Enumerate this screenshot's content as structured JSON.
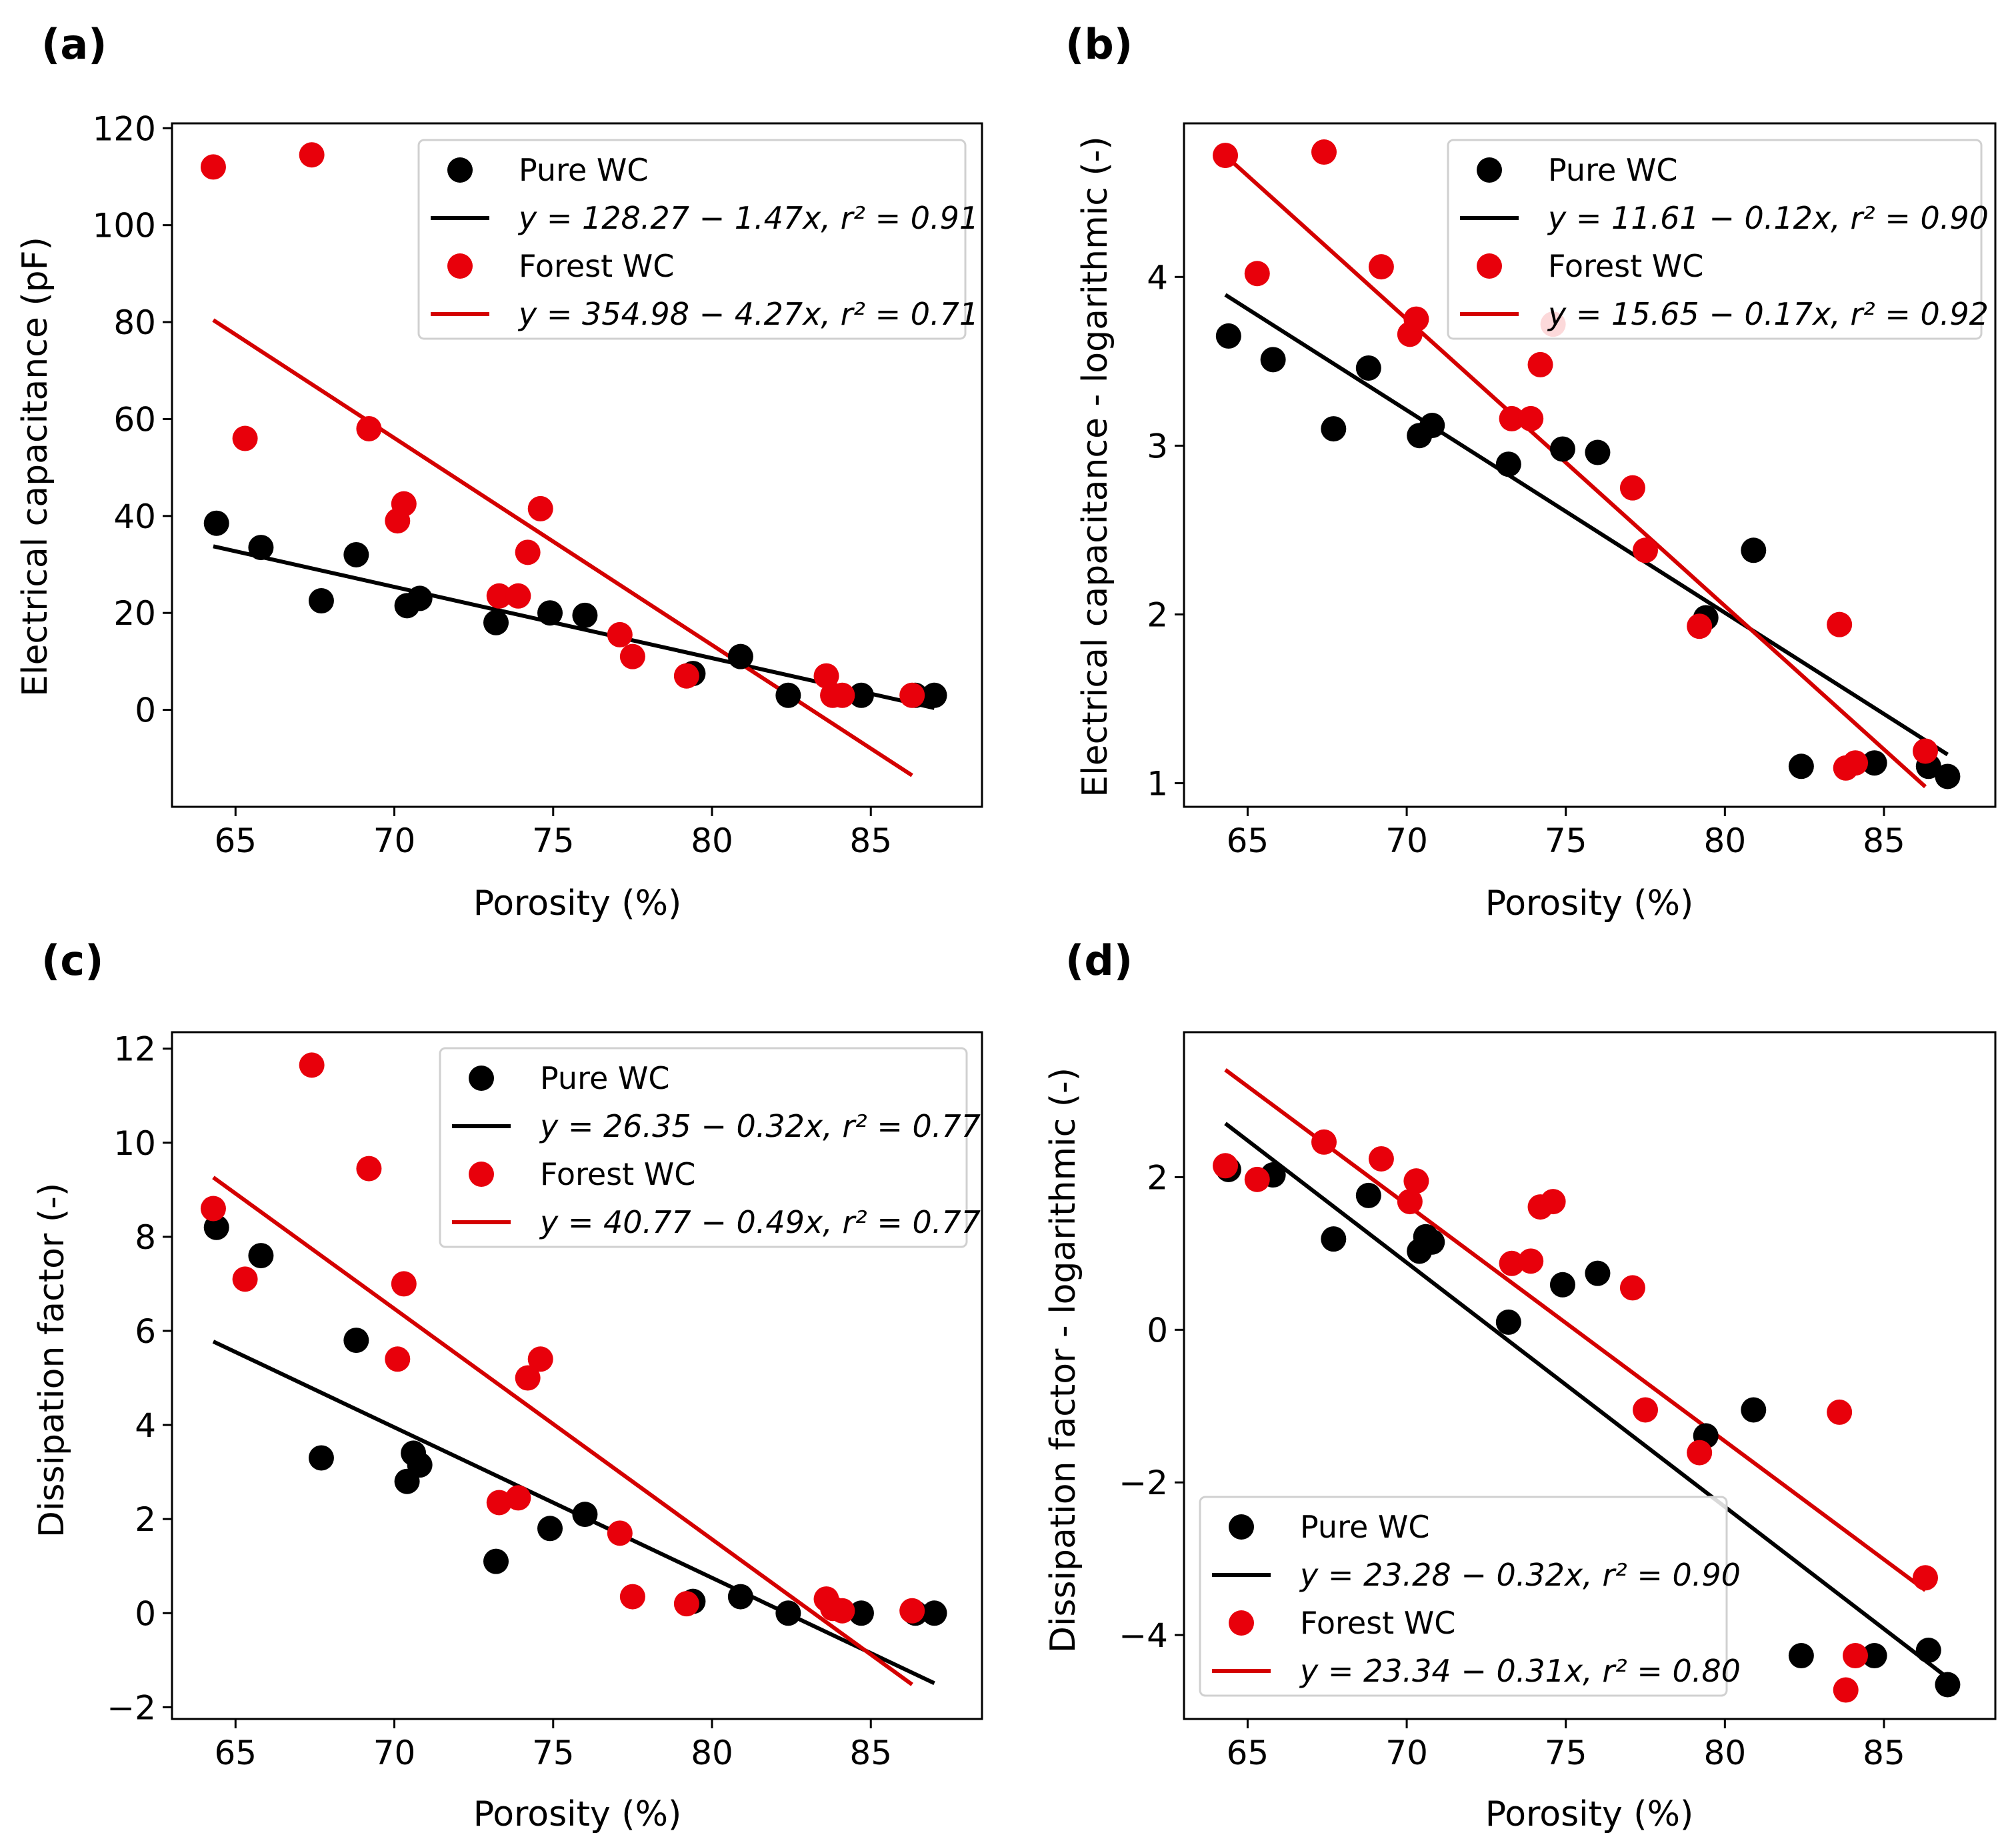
{
  "figure": {
    "x_label": "Porosity (%)",
    "colors": {
      "pure": "#000000",
      "forest": "#e8000b",
      "pure_line": "#000000",
      "forest_line": "#d40000"
    }
  },
  "chart_data": [
    {
      "type": "scatter",
      "panel": "(a)",
      "xlabel": "Porosity (%)",
      "ylabel": "Electrical capacitance (pF)",
      "xlim": [
        63.0,
        88.5
      ],
      "ylim": [
        -20,
        121
      ],
      "xticks": [
        65,
        70,
        75,
        80,
        85
      ],
      "yticks": [
        0,
        20,
        40,
        60,
        80,
        100,
        120
      ],
      "legend_position": "top-right",
      "series": [
        {
          "name": "Pure WC",
          "kind": "points",
          "color": "#000000",
          "x": [
            64.4,
            65.8,
            67.7,
            68.8,
            70.4,
            70.8,
            73.2,
            74.9,
            76.0,
            79.4,
            80.9,
            82.4,
            84.7,
            86.4,
            87.0
          ],
          "y": [
            38.5,
            33.5,
            22.5,
            32,
            21.5,
            23,
            18,
            20,
            19.5,
            7.5,
            11,
            3,
            3,
            3,
            3
          ]
        },
        {
          "name": "y = 128.27 − 1.47x, r² = 0.91",
          "kind": "line",
          "color": "#000000",
          "intercept": 128.27,
          "slope": -1.47,
          "x_range": [
            64.3,
            87.0
          ]
        },
        {
          "name": "Forest WC",
          "kind": "points",
          "color": "#e8000b",
          "x": [
            64.3,
            65.3,
            67.4,
            69.2,
            70.1,
            70.3,
            73.3,
            73.9,
            74.2,
            74.6,
            77.1,
            77.5,
            79.2,
            83.6,
            83.8,
            84.1,
            86.3
          ],
          "y": [
            112,
            56,
            114.5,
            58,
            39,
            42.5,
            23.5,
            23.5,
            32.5,
            41.5,
            15.5,
            11,
            7,
            7,
            3,
            3,
            3
          ]
        },
        {
          "name": "y = 354.98 − 4.27x, r² = 0.71",
          "kind": "line",
          "color": "#d40000",
          "intercept": 354.98,
          "slope": -4.27,
          "x_range": [
            64.3,
            86.3
          ]
        }
      ],
      "legend": [
        {
          "label": "Pure WC",
          "kind": "point",
          "color": "#000000"
        },
        {
          "label": "y = 128.27 − 1.47x, r² = 0.91",
          "kind": "line",
          "color": "#000000"
        },
        {
          "label": "Forest WC",
          "kind": "point",
          "color": "#e8000b"
        },
        {
          "label": "y = 354.98 − 4.27x, r² = 0.71",
          "kind": "line",
          "color": "#d40000"
        }
      ]
    },
    {
      "type": "scatter",
      "panel": "(b)",
      "xlabel": "Porosity (%)",
      "ylabel": "Electrical capacitance - logarithmic (-)",
      "xlim": [
        63.0,
        88.5
      ],
      "ylim": [
        0.86,
        4.91
      ],
      "xticks": [
        65,
        70,
        75,
        80,
        85
      ],
      "yticks": [
        1,
        2,
        3,
        4
      ],
      "legend_position": "top-right",
      "series": [
        {
          "name": "Pure WC",
          "kind": "points",
          "color": "#000000",
          "x": [
            64.4,
            65.8,
            67.7,
            68.8,
            70.4,
            70.8,
            73.2,
            74.9,
            76.0,
            79.4,
            80.9,
            82.4,
            84.7,
            86.4,
            87.0
          ],
          "y": [
            3.65,
            3.51,
            3.1,
            3.46,
            3.06,
            3.12,
            2.89,
            2.98,
            2.96,
            1.98,
            2.38,
            1.1,
            1.12,
            1.1,
            1.04
          ]
        },
        {
          "name": "y = 11.61 − 0.12x, r² = 0.90",
          "kind": "line",
          "color": "#000000",
          "intercept": 11.61,
          "slope": -0.12,
          "x_range": [
            64.3,
            87.0
          ]
        },
        {
          "name": "Forest WC",
          "kind": "points",
          "color": "#e8000b",
          "x": [
            64.3,
            65.3,
            67.4,
            69.2,
            70.1,
            70.3,
            73.3,
            73.9,
            74.2,
            74.6,
            77.1,
            77.5,
            79.2,
            83.6,
            83.8,
            84.1,
            86.3
          ],
          "y": [
            4.72,
            4.02,
            4.74,
            4.06,
            3.66,
            3.75,
            3.16,
            3.16,
            3.48,
            3.72,
            2.75,
            2.38,
            1.93,
            1.94,
            1.09,
            1.12,
            1.19
          ]
        },
        {
          "name": "y = 15.65 − 0.17x, r² = 0.92",
          "kind": "line",
          "color": "#d40000",
          "intercept": 15.65,
          "slope": -0.17,
          "x_range": [
            64.3,
            86.3
          ]
        }
      ],
      "legend": [
        {
          "label": "Pure WC",
          "kind": "point",
          "color": "#000000"
        },
        {
          "label": "y = 11.61 − 0.12x, r² = 0.90",
          "kind": "line",
          "color": "#000000"
        },
        {
          "label": "Forest WC",
          "kind": "point",
          "color": "#e8000b"
        },
        {
          "label": "y = 15.65 − 0.17x, r² = 0.92",
          "kind": "line",
          "color": "#d40000"
        }
      ]
    },
    {
      "type": "scatter",
      "panel": "(c)",
      "xlabel": "Porosity (%)",
      "ylabel": "Dissipation factor (-)",
      "xlim": [
        63.0,
        88.5
      ],
      "ylim": [
        -2.25,
        12.35
      ],
      "xticks": [
        65,
        70,
        75,
        80,
        85
      ],
      "yticks": [
        -2,
        0,
        2,
        4,
        6,
        8,
        10,
        12
      ],
      "legend_position": "top-right",
      "series": [
        {
          "name": "Pure WC",
          "kind": "points",
          "color": "#000000",
          "x": [
            64.4,
            65.8,
            67.7,
            68.8,
            70.4,
            70.6,
            70.8,
            73.2,
            74.9,
            76.0,
            79.4,
            80.9,
            82.4,
            84.7,
            86.4,
            87.0
          ],
          "y": [
            8.2,
            7.6,
            3.3,
            5.8,
            2.8,
            3.4,
            3.15,
            1.1,
            1.8,
            2.1,
            0.25,
            0.35,
            0,
            0,
            0,
            0
          ]
        },
        {
          "name": "y = 26.35 − 0.32x, r² = 0.77",
          "kind": "line",
          "color": "#000000",
          "intercept": 26.35,
          "slope": -0.32,
          "x_range": [
            64.3,
            87.0
          ]
        },
        {
          "name": "Forest WC",
          "kind": "points",
          "color": "#e8000b",
          "x": [
            64.3,
            65.3,
            67.4,
            69.2,
            70.1,
            70.3,
            73.3,
            73.9,
            74.2,
            74.6,
            77.1,
            77.5,
            79.2,
            83.6,
            83.8,
            84.1,
            86.3
          ],
          "y": [
            8.6,
            7.1,
            11.65,
            9.45,
            5.4,
            7.0,
            2.35,
            2.45,
            5.0,
            5.4,
            1.7,
            0.35,
            0.2,
            0.3,
            0.1,
            0.05,
            0.05
          ]
        },
        {
          "name": "y = 40.77 − 0.49x, r² = 0.77",
          "kind": "line",
          "color": "#d40000",
          "intercept": 40.77,
          "slope": -0.49,
          "x_range": [
            64.3,
            86.3
          ]
        }
      ],
      "legend": [
        {
          "label": "Pure WC",
          "kind": "point",
          "color": "#000000"
        },
        {
          "label": "y = 26.35 − 0.32x, r² = 0.77",
          "kind": "line",
          "color": "#000000"
        },
        {
          "label": "Forest WC",
          "kind": "point",
          "color": "#e8000b"
        },
        {
          "label": "y = 40.77 − 0.49x, r² = 0.77",
          "kind": "line",
          "color": "#d40000"
        }
      ]
    },
    {
      "type": "scatter",
      "panel": "(d)",
      "xlabel": "Porosity (%)",
      "ylabel": "Dissipation factor - logarithmic (-)",
      "xlim": [
        63.0,
        88.5
      ],
      "ylim": [
        -5.1,
        3.9
      ],
      "xticks": [
        65,
        70,
        75,
        80,
        85
      ],
      "yticks": [
        -4,
        -2,
        0,
        2
      ],
      "legend_position": "bottom-left",
      "series": [
        {
          "name": "Pure WC",
          "kind": "points",
          "color": "#000000",
          "x": [
            64.4,
            65.8,
            67.7,
            68.8,
            70.4,
            70.6,
            70.8,
            73.2,
            74.9,
            76.0,
            79.4,
            80.9,
            82.4,
            84.7,
            86.4,
            87.0
          ],
          "y": [
            2.1,
            2.03,
            1.19,
            1.76,
            1.03,
            1.22,
            1.15,
            0.1,
            0.59,
            0.74,
            -1.39,
            -1.05,
            -4.27,
            -4.27,
            -4.2,
            -4.65
          ]
        },
        {
          "name": "y = 23.28 − 0.32x, r² = 0.90",
          "kind": "line",
          "color": "#000000",
          "intercept": 23.28,
          "slope": -0.32,
          "x_range": [
            64.3,
            87.0
          ]
        },
        {
          "name": "Forest WC",
          "kind": "points",
          "color": "#e8000b",
          "x": [
            64.3,
            65.3,
            67.4,
            69.2,
            70.1,
            70.3,
            73.3,
            73.9,
            74.2,
            74.6,
            77.1,
            77.5,
            79.2,
            83.6,
            83.8,
            84.1,
            86.3
          ],
          "y": [
            2.15,
            1.97,
            2.46,
            2.24,
            1.68,
            1.95,
            0.87,
            0.9,
            1.61,
            1.68,
            0.55,
            -1.05,
            -1.61,
            -1.08,
            -4.72,
            -4.27,
            -3.25
          ]
        },
        {
          "name": "y = 23.34 − 0.31x, r² = 0.80",
          "kind": "line",
          "color": "#d40000",
          "intercept": 23.34,
          "slope": -0.31,
          "x_range": [
            64.3,
            86.3
          ]
        }
      ],
      "legend": [
        {
          "label": "Pure WC",
          "kind": "point",
          "color": "#000000"
        },
        {
          "label": "y = 23.28 − 0.32x, r² = 0.90",
          "kind": "line",
          "color": "#000000"
        },
        {
          "label": "Forest WC",
          "kind": "point",
          "color": "#e8000b"
        },
        {
          "label": "y = 23.34 − 0.31x, r² = 0.80",
          "kind": "line",
          "color": "#d40000"
        }
      ]
    }
  ]
}
